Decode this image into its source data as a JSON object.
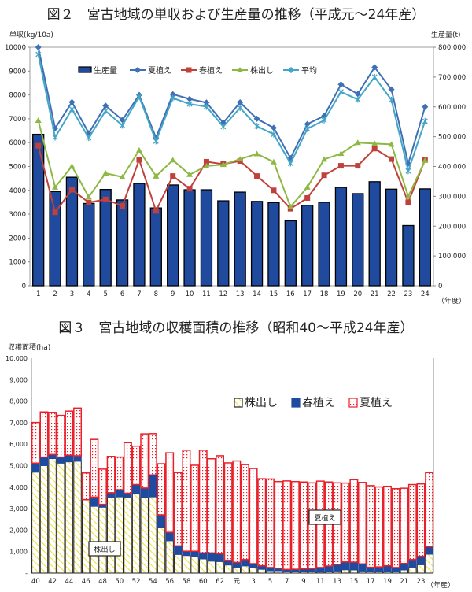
{
  "chart_data": [
    {
      "type": "bar+line",
      "title": "図２　宮古地域の単収および生産量の推移（平成元～24年産）",
      "ylabel_left": "単収(kg/10a)",
      "ylabel_right": "生産量(t)",
      "xlabel": "（年度）",
      "ylim_left": [
        0,
        10000
      ],
      "ylim_right": [
        0,
        800000
      ],
      "yticks_left": [
        "0",
        "1000",
        "2000",
        "3000",
        "4000",
        "5000",
        "6000",
        "7000",
        "8000",
        "9000",
        "10000"
      ],
      "yticks_right": [
        "0",
        "100,000",
        "200,000",
        "300,000",
        "400,000",
        "500,000",
        "600,000",
        "700,000",
        "800,000"
      ],
      "legend_position": "top",
      "categories": [
        "1",
        "2",
        "3",
        "4",
        "5",
        "6",
        "7",
        "8",
        "9",
        "10",
        "11",
        "12",
        "13",
        "14",
        "15",
        "16",
        "17",
        "18",
        "19",
        "20",
        "21",
        "22",
        "23",
        "24"
      ],
      "bar_series": {
        "name": "生産量",
        "axis": "right",
        "color": "#1f4a9e",
        "values": [
          508000,
          316000,
          364000,
          276000,
          323000,
          288000,
          343000,
          261000,
          338000,
          322000,
          322000,
          285000,
          314000,
          283000,
          279000,
          218000,
          270000,
          280000,
          330000,
          309000,
          349000,
          324000,
          202000,
          325000
        ]
      },
      "series": [
        {
          "name": "夏植え",
          "color": "#3f6fb5",
          "marker": "diamond",
          "values": [
            10000,
            6600,
            7700,
            6400,
            7550,
            6950,
            8000,
            6200,
            8030,
            7830,
            7680,
            6830,
            7690,
            7000,
            6620,
            5350,
            6780,
            7120,
            8440,
            8040,
            9160,
            8230,
            5120,
            7500
          ]
        },
        {
          "name": "春植え",
          "color": "#c0413c",
          "marker": "square",
          "values": [
            5870,
            3080,
            4030,
            3490,
            3620,
            3350,
            5280,
            3140,
            4600,
            4070,
            5200,
            5100,
            5230,
            4600,
            4000,
            3230,
            3680,
            4630,
            5030,
            5030,
            5750,
            5310,
            3500,
            5280
          ]
        },
        {
          "name": "株出し",
          "color": "#8db843",
          "marker": "triangle",
          "values": [
            6930,
            4130,
            5010,
            3720,
            4720,
            4560,
            5680,
            4590,
            5270,
            4660,
            5020,
            5080,
            5310,
            5530,
            5190,
            3310,
            4130,
            5300,
            5540,
            6000,
            5960,
            5930,
            3750,
            5250
          ]
        },
        {
          "name": "平均",
          "color": "#44a6c6",
          "marker": "x",
          "values": [
            9700,
            6220,
            7400,
            6200,
            7330,
            6720,
            7930,
            6060,
            7870,
            7620,
            7510,
            6670,
            7460,
            6690,
            6350,
            5130,
            6580,
            6940,
            8130,
            7810,
            8750,
            7790,
            4810,
            6900
          ]
        }
      ]
    },
    {
      "type": "stacked-bar",
      "title": "図３　宮古地域の収穫面積の推移（昭和40～平成24年産）",
      "ylabel": "収穫面積(ha)",
      "xlabel": "（年産）",
      "ylim": [
        0,
        10000
      ],
      "yticks": [
        "-",
        "1,000",
        "2,000",
        "3,000",
        "4,000",
        "5,000",
        "6,000",
        "7,000",
        "8,000",
        "9,000",
        "10,000"
      ],
      "legend_position": "top-center",
      "tick_labels": [
        "40",
        "42",
        "44",
        "46",
        "48",
        "50",
        "52",
        "54",
        "56",
        "58",
        "60",
        "62",
        "元",
        "3",
        "5",
        "7",
        "9",
        "11",
        "13",
        "15",
        "17",
        "19",
        "21",
        "23"
      ],
      "categories": [
        "40",
        "41",
        "42",
        "43",
        "44",
        "45",
        "46",
        "47",
        "48",
        "49",
        "50",
        "51",
        "52",
        "53",
        "54",
        "55",
        "56",
        "57",
        "58",
        "59",
        "60",
        "61",
        "62",
        "63",
        "元",
        "2",
        "3",
        "4",
        "5",
        "6",
        "7",
        "8",
        "9",
        "10",
        "11",
        "12",
        "13",
        "14",
        "15",
        "16",
        "17",
        "18",
        "19",
        "20",
        "21",
        "22",
        "23",
        "24"
      ],
      "annotations": [
        "株出し",
        "夏植え"
      ],
      "series": [
        {
          "name": "株出し",
          "color": "#f2e33a",
          "pattern": "diagonal-hatch",
          "values": [
            4700,
            5000,
            5330,
            5120,
            5180,
            5210,
            3410,
            3110,
            3070,
            3510,
            3550,
            3540,
            3680,
            3510,
            3550,
            2110,
            1510,
            870,
            820,
            780,
            660,
            560,
            540,
            380,
            280,
            340,
            270,
            180,
            110,
            110,
            90,
            70,
            70,
            70,
            50,
            70,
            100,
            160,
            150,
            100,
            70,
            70,
            70,
            70,
            150,
            280,
            390,
            880
          ]
        },
        {
          "name": "春植え",
          "color": "#1f4a9e",
          "pattern": "solid",
          "values": [
            420,
            400,
            190,
            280,
            310,
            250,
            10,
            430,
            130,
            230,
            330,
            180,
            440,
            450,
            1020,
            600,
            390,
            400,
            200,
            240,
            280,
            380,
            360,
            220,
            220,
            290,
            170,
            160,
            150,
            120,
            80,
            110,
            130,
            140,
            210,
            260,
            310,
            360,
            360,
            330,
            200,
            220,
            270,
            190,
            300,
            350,
            390,
            350
          ]
        },
        {
          "name": "夏植え",
          "color": "#e8202a",
          "pattern": "dots",
          "values": [
            1890,
            2100,
            1960,
            1940,
            2050,
            2220,
            1240,
            2680,
            1640,
            1690,
            1520,
            2350,
            1790,
            2520,
            1920,
            2380,
            3700,
            3410,
            4700,
            4000,
            4780,
            4380,
            4560,
            4530,
            4720,
            4420,
            4430,
            4050,
            4120,
            4030,
            4120,
            4080,
            4040,
            3990,
            4020,
            3910,
            3790,
            3670,
            3840,
            3790,
            3800,
            3720,
            3700,
            3670,
            3500,
            3490,
            3370,
            3450
          ]
        }
      ]
    }
  ]
}
